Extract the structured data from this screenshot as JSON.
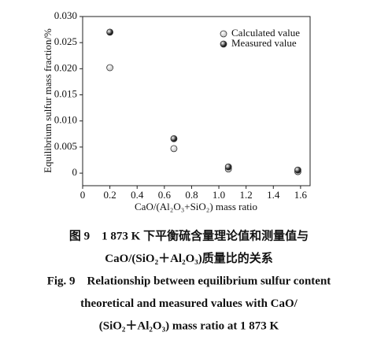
{
  "chart_data": {
    "type": "scatter",
    "xlabel": "CaO/(Al₂O₃+SiO₂) mass ratio",
    "ylabel": "Equilibrium sulfur mass fraction/%",
    "xlim": [
      0,
      1.67
    ],
    "ylim": [
      -0.0024,
      0.03
    ],
    "xticks": [
      0,
      0.2,
      0.4,
      0.6,
      0.8,
      {
        "value": 1.0,
        "label": "1.0"
      },
      1.2,
      1.4,
      1.6
    ],
    "yticks": [
      0,
      0.005,
      {
        "value": 0.01,
        "label": "0.010"
      },
      0.015,
      {
        "value": 0.02,
        "label": "0.020"
      },
      0.025,
      {
        "value": 0.03,
        "label": "0.030"
      }
    ],
    "legend": "upper right",
    "series": [
      {
        "name": "Calculated value",
        "color": "#cfcfcf",
        "x": [
          0.2,
          0.67,
          1.07,
          1.58
        ],
        "values": [
          0.0202,
          0.0047,
          0.0008,
          0.0003
        ]
      },
      {
        "name": "Measured value",
        "color": "#1e1e1e",
        "x": [
          0.2,
          0.67,
          1.07,
          1.58
        ],
        "values": [
          0.027,
          0.0066,
          0.0012,
          0.0006
        ]
      }
    ],
    "caption": [
      "图 9　1 873 K 下平衡硫含量理论值和测量值与",
      "CaO/(SiO₂＋Al₂O₃)质量比的关系",
      "Fig. 9　Relationship between equilibrium sulfur content",
      "theoretical and measured values with CaO/",
      "(SiO₂＋Al₂O₃) mass ratio at 1 873 K"
    ]
  }
}
